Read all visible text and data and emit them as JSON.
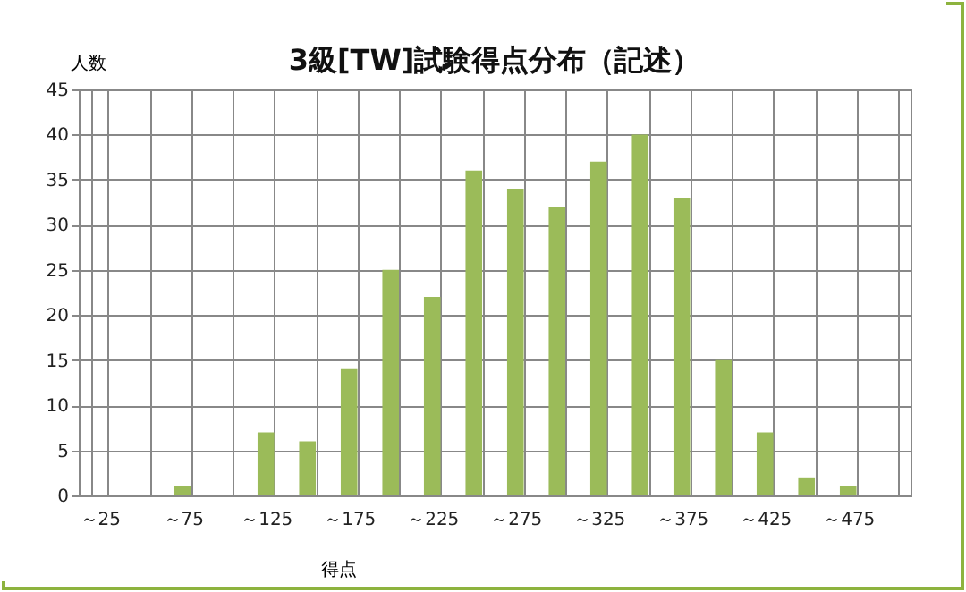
{
  "chart_data": {
    "type": "bar",
    "title": "3級[TW]試験得点分布（記述）",
    "xlabel": "得点",
    "ylabel": "人数",
    "categories": [
      "～25",
      null,
      "～75",
      null,
      "～125",
      null,
      "～175",
      null,
      "～225",
      null,
      "～275",
      null,
      "～325",
      null,
      "～375",
      null,
      "～425",
      null,
      "～475",
      null
    ],
    "values": [
      0,
      0,
      1,
      0,
      7,
      6,
      14,
      25,
      22,
      36,
      34,
      32,
      37,
      40,
      33,
      15,
      7,
      2,
      1,
      0
    ],
    "color": "#9bbb59",
    "ylim": [
      0,
      45
    ],
    "yticks": [
      0,
      5,
      10,
      15,
      20,
      25,
      30,
      35,
      40,
      45
    ],
    "grid": true
  }
}
